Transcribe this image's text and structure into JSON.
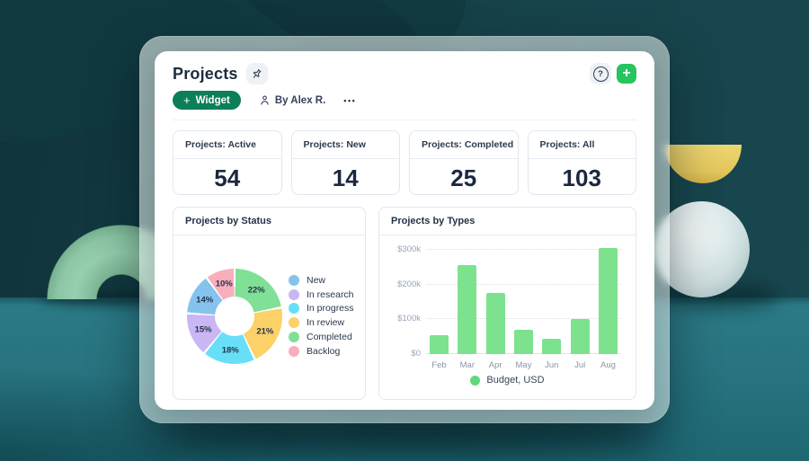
{
  "header": {
    "title": "Projects",
    "widget_button_label": "Widget",
    "byline": "By Alex R.",
    "icons": {
      "plus": "+",
      "help": "?",
      "more": "•••"
    }
  },
  "stats": [
    {
      "label": "Projects: Active",
      "value": "54"
    },
    {
      "label": "Projects: New",
      "value": "14"
    },
    {
      "label": "Projects: Completed",
      "value": "25"
    },
    {
      "label": "Projects: All",
      "value": "103"
    }
  ],
  "panels": {
    "status": {
      "title": "Projects by Status"
    },
    "types": {
      "title": "Projects by Types"
    }
  },
  "chart_data": [
    {
      "type": "pie",
      "title": "Projects by Status",
      "donut": true,
      "label_format": "percent",
      "slice_order": "clockwise-from-top",
      "slices": [
        {
          "label": "Completed",
          "value": 22,
          "color": "#7fe096"
        },
        {
          "label": "In review",
          "value": 21,
          "color": "#fbd168"
        },
        {
          "label": "In progress",
          "value": 18,
          "color": "#67dff8"
        },
        {
          "label": "In research",
          "value": 15,
          "color": "#c9b6f4"
        },
        {
          "label": "New",
          "value": 14,
          "color": "#85c3ee"
        },
        {
          "label": "Backlog",
          "value": 10,
          "color": "#f9aebc"
        }
      ],
      "legend_position": "right",
      "legend": [
        {
          "label": "New",
          "color": "#85c3ee"
        },
        {
          "label": "In research",
          "color": "#c9b6f4"
        },
        {
          "label": "In progress",
          "color": "#67dff8"
        },
        {
          "label": "In review",
          "color": "#fbd168"
        },
        {
          "label": "Completed",
          "color": "#7fe096"
        },
        {
          "label": "Backlog",
          "color": "#f9aebc"
        }
      ]
    },
    {
      "type": "bar",
      "title": "Projects by Types",
      "categories": [
        "Feb",
        "Mar",
        "Apr",
        "May",
        "Jun",
        "Jul",
        "Aug"
      ],
      "values_usd_k": [
        55,
        255,
        175,
        70,
        45,
        100,
        305
      ],
      "ylim_k": [
        0,
        300
      ],
      "y_ticks": [
        {
          "label": "$0",
          "value": 0
        },
        {
          "label": "$100k",
          "value": 100
        },
        {
          "label": "$200k",
          "value": 200
        },
        {
          "label": "$300k",
          "value": 300
        }
      ],
      "grid": "dotted-horizontal",
      "bar_color": "#7de28e",
      "legend_position": "bottom",
      "legend": [
        {
          "label": "Budget, USD",
          "color": "#5fd87b"
        }
      ]
    }
  ]
}
